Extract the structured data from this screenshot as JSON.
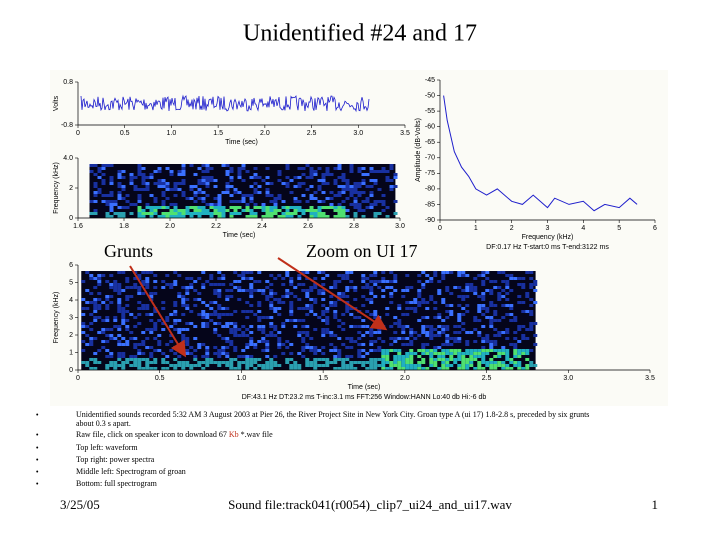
{
  "title": "Unidentified #24 and 17",
  "charts": [
    {
      "type": "waveform",
      "xlabel": "Time (sec)",
      "ylabel": "Volts",
      "xlim": [
        0,
        3.5
      ],
      "xticks": [
        0,
        0.5,
        {
          "value": 1,
          "label": "1.0"
        },
        1.5,
        {
          "value": 2,
          "label": "2.0"
        },
        2.5,
        {
          "value": 3,
          "label": "3.0"
        },
        3.5
      ],
      "ylim": [
        -0.8,
        0.8
      ],
      "yticks": [
        0.8,
        -0.8
      ],
      "color": "#1a1acc"
    },
    {
      "type": "spectrogram",
      "xlabel": "Time (sec)",
      "ylabel": "Frequency (kHz)",
      "xlim": [
        1.6,
        3.0
      ],
      "xticks": [
        1.6,
        1.8,
        {
          "value": 2,
          "label": "2.0"
        },
        2.2,
        2.4,
        2.6,
        2.8,
        {
          "value": 3,
          "label": "3.0"
        }
      ],
      "ylim": [
        0,
        4
      ],
      "yticks": [
        0,
        2,
        {
          "value": 4,
          "label": "4.0"
        }
      ]
    },
    {
      "type": "line",
      "xlabel": "Frequency (kHz)",
      "ylabel": "Amplitude (dB-Volts)",
      "xlim": [
        0,
        6
      ],
      "xticks": [
        0,
        1,
        2,
        3,
        4,
        5,
        6
      ],
      "ylim": [
        -90,
        -45
      ],
      "yticks": [
        -45,
        -50,
        -55,
        -60,
        -65,
        -70,
        -75,
        -80,
        -85,
        -90
      ],
      "x": [
        0.1,
        0.2,
        0.4,
        0.6,
        0.8,
        1.0,
        1.3,
        1.6,
        2.0,
        2.3,
        2.6,
        3.0,
        3.2,
        3.6,
        4.0,
        4.3,
        4.6,
        5.0,
        5.3,
        5.5
      ],
      "values": [
        -50,
        -58,
        -68,
        -73,
        -76,
        -80,
        -82,
        -80,
        -84,
        -85,
        -82,
        -86,
        -83,
        -85,
        -84,
        -87,
        -85,
        -86,
        -83,
        -85
      ],
      "color": "#1f1fcc",
      "note": "DF:0.17 Hz   T-start:0 ms   T-end:3122 ms"
    },
    {
      "type": "spectrogram",
      "xlabel": "Time (sec)",
      "ylabel": "Frequency (kHz)",
      "xlim": [
        0,
        3.5
      ],
      "xticks": [
        0,
        0.5,
        {
          "value": 1,
          "label": "1.0"
        },
        1.5,
        {
          "value": 2,
          "label": "2.0"
        },
        2.5,
        {
          "value": 3,
          "label": "3.0"
        },
        3.5
      ],
      "ylim": [
        0,
        6
      ],
      "yticks": [
        0,
        1,
        2,
        3,
        4,
        5,
        6
      ],
      "note": "DF:43.1 Hz   DT:23.2 ms   T-inc:3.1 ms   FFT:256   Window:HANN   Lo:40 db   Hi:-6 db"
    }
  ],
  "annotations": [
    "Grunts",
    "Zoom on UI 17"
  ],
  "bullets": [
    "Unidentified sounds recorded 5:32 AM 3 August 2003 at Pier 26, the River Project Site in New York City. Groan type A (ui 17) 1.8-2.8 s, preceded by six grunts about 0.3 s apart.",
    [
      "Raw file, click on speaker icon to download 67 ",
      "Kb",
      " *.wav file"
    ],
    "Top left: waveform",
    "Top right: power spectra",
    "Middle left: Spectrogram of groan",
    "Bottom: full spectrogram"
  ],
  "footer": {
    "date": "3/25/05",
    "center": "Sound file:track041(r0054)_clip7_ui24_and_ui17.wav",
    "page": "1"
  }
}
